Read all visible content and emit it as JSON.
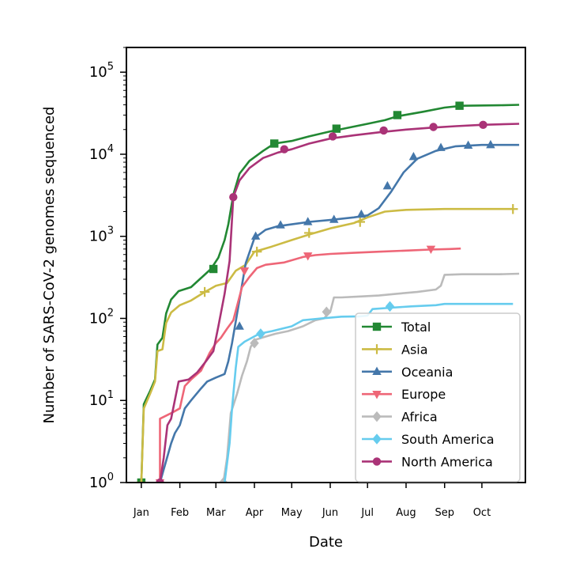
{
  "chart_data": {
    "type": "line",
    "title": "",
    "xlabel": "Date",
    "ylabel": "Number of SARS-CoV-2 genomes sequenced",
    "yscale": "log",
    "ylim": [
      1,
      200000
    ],
    "xlim": [
      "2019-12-20",
      "2020-11-05"
    ],
    "grid": false,
    "legend_position": "lower-right",
    "x_ticks": [
      {
        "date": "2020-01-01",
        "label": "Jan"
      },
      {
        "date": "2020-02-01",
        "label": "Feb"
      },
      {
        "date": "2020-03-01",
        "label": "Mar"
      },
      {
        "date": "2020-04-01",
        "label": "Apr"
      },
      {
        "date": "2020-05-01",
        "label": "May"
      },
      {
        "date": "2020-06-01",
        "label": "Jun"
      },
      {
        "date": "2020-07-01",
        "label": "Jul"
      },
      {
        "date": "2020-08-01",
        "label": "Aug"
      },
      {
        "date": "2020-09-01",
        "label": "Sep"
      },
      {
        "date": "2020-10-01",
        "label": "Oct"
      }
    ],
    "y_ticks": [
      {
        "value": 1,
        "base": "10",
        "exp": "0"
      },
      {
        "value": 10,
        "base": "10",
        "exp": "1"
      },
      {
        "value": 100,
        "base": "10",
        "exp": "2"
      },
      {
        "value": 1000,
        "base": "10",
        "exp": "3"
      },
      {
        "value": 10000,
        "base": "10",
        "exp": "4"
      },
      {
        "value": 100000,
        "base": "10",
        "exp": "5"
      }
    ],
    "series": [
      {
        "name": "Total",
        "color": "#228833",
        "marker": "square",
        "points": [
          [
            "2020-01-01",
            1
          ],
          [
            "2020-01-03",
            9
          ],
          [
            "2020-01-08",
            13
          ],
          [
            "2020-01-12",
            18
          ],
          [
            "2020-01-14",
            48
          ],
          [
            "2020-01-18",
            58
          ],
          [
            "2020-01-21",
            115
          ],
          [
            "2020-01-25",
            170
          ],
          [
            "2020-01-31",
            215
          ],
          [
            "2020-02-10",
            240
          ],
          [
            "2020-02-18",
            310
          ],
          [
            "2020-02-26",
            400
          ],
          [
            "2020-03-03",
            550
          ],
          [
            "2020-03-08",
            900
          ],
          [
            "2020-03-11",
            1400
          ],
          [
            "2020-03-15",
            3200
          ],
          [
            "2020-03-20",
            5800
          ],
          [
            "2020-03-28",
            8300
          ],
          [
            "2020-04-08",
            11000
          ],
          [
            "2020-04-17",
            13500
          ],
          [
            "2020-05-01",
            14500
          ],
          [
            "2020-05-15",
            16500
          ],
          [
            "2020-06-01",
            19000
          ],
          [
            "2020-06-15",
            21000
          ],
          [
            "2020-07-01",
            23500
          ],
          [
            "2020-07-15",
            26000
          ],
          [
            "2020-07-25",
            29000
          ],
          [
            "2020-08-15",
            33000
          ],
          [
            "2020-09-01",
            37000
          ],
          [
            "2020-09-15",
            39000
          ],
          [
            "2020-10-15",
            39500
          ],
          [
            "2020-10-31",
            40000
          ]
        ],
        "markers": [
          [
            "2020-01-01",
            1
          ],
          [
            "2020-02-28",
            400
          ],
          [
            "2020-04-17",
            13500
          ],
          [
            "2020-06-06",
            20500
          ],
          [
            "2020-07-25",
            30000
          ],
          [
            "2020-09-13",
            39000
          ]
        ]
      },
      {
        "name": "Asia",
        "color": "#CCBB44",
        "marker": "plus",
        "points": [
          [
            "2020-01-01",
            1
          ],
          [
            "2020-01-03",
            8
          ],
          [
            "2020-01-08",
            12
          ],
          [
            "2020-01-12",
            17
          ],
          [
            "2020-01-14",
            40
          ],
          [
            "2020-01-18",
            42
          ],
          [
            "2020-01-21",
            88
          ],
          [
            "2020-01-25",
            118
          ],
          [
            "2020-02-01",
            145
          ],
          [
            "2020-02-10",
            165
          ],
          [
            "2020-02-20",
            205
          ],
          [
            "2020-03-01",
            250
          ],
          [
            "2020-03-10",
            270
          ],
          [
            "2020-03-17",
            380
          ],
          [
            "2020-03-25",
            450
          ],
          [
            "2020-04-01",
            650
          ],
          [
            "2020-04-15",
            750
          ],
          [
            "2020-05-01",
            900
          ],
          [
            "2020-05-15",
            1050
          ],
          [
            "2020-06-01",
            1250
          ],
          [
            "2020-06-20",
            1450
          ],
          [
            "2020-07-01",
            1700
          ],
          [
            "2020-07-15",
            2000
          ],
          [
            "2020-08-01",
            2100
          ],
          [
            "2020-09-01",
            2150
          ],
          [
            "2020-10-15",
            2150
          ],
          [
            "2020-10-26",
            2150
          ]
        ],
        "markers": [
          [
            "2020-01-01",
            1
          ],
          [
            "2020-02-21",
            210
          ],
          [
            "2020-04-03",
            650
          ],
          [
            "2020-05-15",
            1100
          ],
          [
            "2020-06-25",
            1500
          ],
          [
            "2020-10-26",
            2150
          ]
        ]
      },
      {
        "name": "Oceania",
        "color": "#4477AA",
        "marker": "triangle-up",
        "points": [
          [
            "2020-01-16",
            1
          ],
          [
            "2020-01-25",
            3
          ],
          [
            "2020-01-28",
            4
          ],
          [
            "2020-02-01",
            5
          ],
          [
            "2020-02-05",
            8
          ],
          [
            "2020-02-10",
            10
          ],
          [
            "2020-02-18",
            14
          ],
          [
            "2020-02-23",
            17
          ],
          [
            "2020-03-01",
            19
          ],
          [
            "2020-03-08",
            21
          ],
          [
            "2020-03-11",
            30
          ],
          [
            "2020-03-14",
            50
          ],
          [
            "2020-03-20",
            170
          ],
          [
            "2020-03-25",
            470
          ],
          [
            "2020-04-01",
            950
          ],
          [
            "2020-04-10",
            1200
          ],
          [
            "2020-04-20",
            1330
          ],
          [
            "2020-05-01",
            1400
          ],
          [
            "2020-05-15",
            1500
          ],
          [
            "2020-06-01",
            1580
          ],
          [
            "2020-06-20",
            1700
          ],
          [
            "2020-07-01",
            1800
          ],
          [
            "2020-07-10",
            2200
          ],
          [
            "2020-07-20",
            3500
          ],
          [
            "2020-07-30",
            6000
          ],
          [
            "2020-08-10",
            8800
          ],
          [
            "2020-08-25",
            11000
          ],
          [
            "2020-09-10",
            12500
          ],
          [
            "2020-10-01",
            13000
          ],
          [
            "2020-10-31",
            13000
          ]
        ],
        "markers": [
          [
            "2020-01-16",
            1
          ],
          [
            "2020-03-20",
            80
          ],
          [
            "2020-04-02",
            1000
          ],
          [
            "2020-04-22",
            1370
          ],
          [
            "2020-05-14",
            1500
          ],
          [
            "2020-06-04",
            1600
          ],
          [
            "2020-06-26",
            1850
          ],
          [
            "2020-07-17",
            4100
          ],
          [
            "2020-08-07",
            9300
          ],
          [
            "2020-08-29",
            12000
          ],
          [
            "2020-09-20",
            12800
          ],
          [
            "2020-10-08",
            13000
          ]
        ]
      },
      {
        "name": "Europe",
        "color": "#EE6677",
        "marker": "triangle-down",
        "points": [
          [
            "2020-01-16",
            1
          ],
          [
            "2020-01-16",
            6
          ],
          [
            "2020-01-25",
            7
          ],
          [
            "2020-02-01",
            8
          ],
          [
            "2020-02-05",
            15
          ],
          [
            "2020-02-10",
            18
          ],
          [
            "2020-02-18",
            23
          ],
          [
            "2020-02-25",
            38
          ],
          [
            "2020-03-01",
            50
          ],
          [
            "2020-03-05",
            58
          ],
          [
            "2020-03-10",
            75
          ],
          [
            "2020-03-15",
            95
          ],
          [
            "2020-03-22",
            240
          ],
          [
            "2020-03-28",
            320
          ],
          [
            "2020-04-03",
            410
          ],
          [
            "2020-04-10",
            450
          ],
          [
            "2020-04-25",
            480
          ],
          [
            "2020-05-10",
            560
          ],
          [
            "2020-05-20",
            590
          ],
          [
            "2020-06-01",
            610
          ],
          [
            "2020-06-20",
            630
          ],
          [
            "2020-07-10",
            650
          ],
          [
            "2020-08-01",
            670
          ],
          [
            "2020-08-20",
            690
          ],
          [
            "2020-09-05",
            700
          ],
          [
            "2020-09-14",
            710
          ]
        ],
        "markers": [
          [
            "2020-01-16",
            1
          ],
          [
            "2020-03-24",
            380
          ],
          [
            "2020-05-14",
            580
          ],
          [
            "2020-08-21",
            700
          ]
        ]
      },
      {
        "name": "Africa",
        "color": "#BBBBBB",
        "marker": "diamond",
        "points": [
          [
            "2020-03-07",
            1
          ],
          [
            "2020-03-10",
            2
          ],
          [
            "2020-03-13",
            7
          ],
          [
            "2020-03-18",
            12
          ],
          [
            "2020-03-22",
            20
          ],
          [
            "2020-03-26",
            30
          ],
          [
            "2020-03-29",
            45
          ],
          [
            "2020-04-02",
            55
          ],
          [
            "2020-04-10",
            60
          ],
          [
            "2020-04-18",
            65
          ],
          [
            "2020-04-28",
            70
          ],
          [
            "2020-05-10",
            80
          ],
          [
            "2020-05-20",
            95
          ],
          [
            "2020-05-27",
            100
          ],
          [
            "2020-06-01",
            120
          ],
          [
            "2020-06-04",
            180
          ],
          [
            "2020-06-10",
            180
          ],
          [
            "2020-06-25",
            185
          ],
          [
            "2020-07-10",
            190
          ],
          [
            "2020-07-25",
            200
          ],
          [
            "2020-08-10",
            210
          ],
          [
            "2020-08-25",
            225
          ],
          [
            "2020-08-29",
            250
          ],
          [
            "2020-09-01",
            340
          ],
          [
            "2020-09-15",
            345
          ],
          [
            "2020-10-15",
            345
          ],
          [
            "2020-10-31",
            350
          ]
        ],
        "markers": [
          [
            "2020-03-07",
            1
          ],
          [
            "2020-04-01",
            50
          ],
          [
            "2020-05-29",
            120
          ]
        ]
      },
      {
        "name": "South America",
        "color": "#66CCEE",
        "marker": "diamond",
        "points": [
          [
            "2020-03-08",
            1
          ],
          [
            "2020-03-12",
            3
          ],
          [
            "2020-03-14",
            8
          ],
          [
            "2020-03-17",
            25
          ],
          [
            "2020-03-19",
            45
          ],
          [
            "2020-03-24",
            52
          ],
          [
            "2020-04-05",
            65
          ],
          [
            "2020-04-15",
            70
          ],
          [
            "2020-05-01",
            80
          ],
          [
            "2020-05-10",
            95
          ],
          [
            "2020-05-25",
            100
          ],
          [
            "2020-06-10",
            105
          ],
          [
            "2020-06-25",
            106
          ],
          [
            "2020-07-01",
            108
          ],
          [
            "2020-07-05",
            130
          ],
          [
            "2020-07-20",
            135
          ],
          [
            "2020-08-05",
            140
          ],
          [
            "2020-08-25",
            145
          ],
          [
            "2020-09-01",
            150
          ],
          [
            "2020-10-15",
            150
          ],
          [
            "2020-10-26",
            150
          ]
        ],
        "markers": [
          [
            "2020-04-06",
            65
          ],
          [
            "2020-07-19",
            140
          ]
        ]
      },
      {
        "name": "North America",
        "color": "#AA3377",
        "marker": "circle",
        "points": [
          [
            "2020-01-16",
            1
          ],
          [
            "2020-01-19",
            2
          ],
          [
            "2020-01-22",
            5
          ],
          [
            "2020-01-25",
            6
          ],
          [
            "2020-01-31",
            17
          ],
          [
            "2020-02-08",
            18
          ],
          [
            "2020-02-15",
            22
          ],
          [
            "2020-02-22",
            30
          ],
          [
            "2020-02-28",
            40
          ],
          [
            "2020-03-03",
            80
          ],
          [
            "2020-03-08",
            200
          ],
          [
            "2020-03-12",
            500
          ],
          [
            "2020-03-15",
            3000
          ],
          [
            "2020-03-20",
            4800
          ],
          [
            "2020-03-28",
            6800
          ],
          [
            "2020-04-08",
            9000
          ],
          [
            "2020-04-20",
            10500
          ],
          [
            "2020-05-01",
            11500
          ],
          [
            "2020-05-15",
            13500
          ],
          [
            "2020-06-01",
            15500
          ],
          [
            "2020-06-20",
            17000
          ],
          [
            "2020-07-10",
            18500
          ],
          [
            "2020-08-01",
            20000
          ],
          [
            "2020-08-20",
            21000
          ],
          [
            "2020-09-10",
            22000
          ],
          [
            "2020-10-01",
            22800
          ],
          [
            "2020-10-31",
            23500
          ]
        ],
        "markers": [
          [
            "2020-01-16",
            1
          ],
          [
            "2020-03-15",
            3000
          ],
          [
            "2020-04-25",
            11500
          ],
          [
            "2020-06-03",
            16500
          ],
          [
            "2020-07-14",
            19500
          ],
          [
            "2020-08-23",
            21500
          ],
          [
            "2020-10-02",
            22800
          ]
        ]
      }
    ]
  }
}
